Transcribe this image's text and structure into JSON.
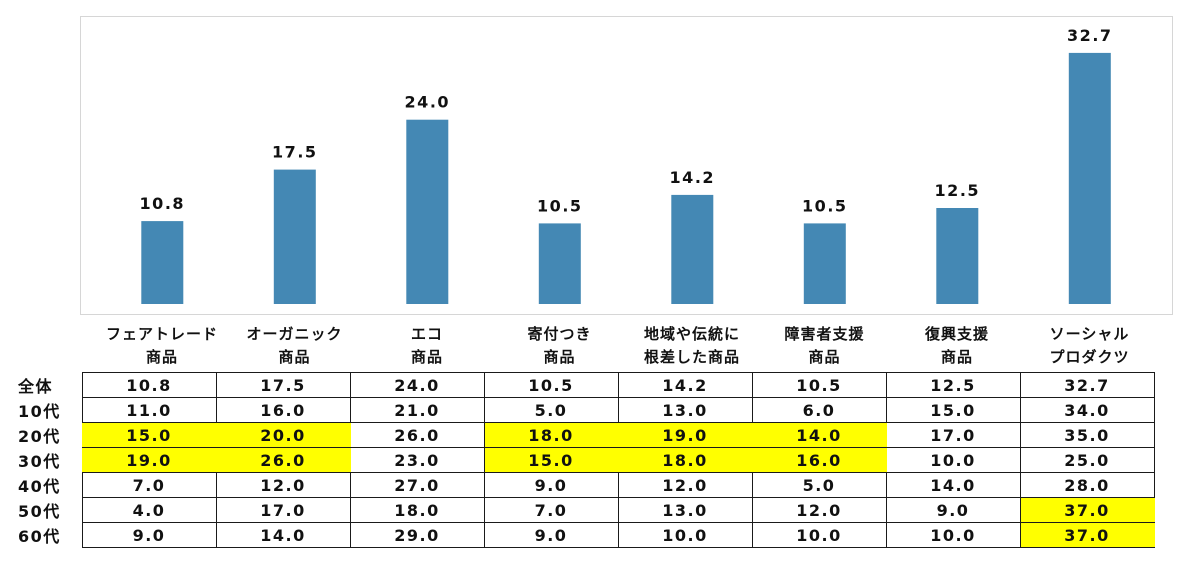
{
  "colors": {
    "bar": "#4488b4",
    "highlight": "#ffff00",
    "frame": "#d6d6d6"
  },
  "chart_data": {
    "type": "bar",
    "categories": [
      [
        "フェアトレード",
        "商品"
      ],
      [
        "オーガニック",
        "商品"
      ],
      [
        "エコ",
        "商品"
      ],
      [
        "寄付つき",
        "商品"
      ],
      [
        "地域や伝統に",
        "根差した商品"
      ],
      [
        "障害者支援",
        "商品"
      ],
      [
        "復興支援",
        "商品"
      ],
      [
        "ソーシャル",
        "プロダクツ"
      ]
    ],
    "values": [
      10.8,
      17.5,
      24.0,
      10.5,
      14.2,
      10.5,
      12.5,
      32.7
    ],
    "value_labels": [
      "10.8",
      "17.5",
      "24.0",
      "10.5",
      "14.2",
      "10.5",
      "12.5",
      "32.7"
    ],
    "ylim": [
      0,
      37.5
    ],
    "grid": false,
    "legend": "none"
  },
  "table": {
    "rows": [
      {
        "label": "全体",
        "values": [
          "10.8",
          "17.5",
          "24.0",
          "10.5",
          "14.2",
          "10.5",
          "12.5",
          "32.7"
        ],
        "highlight": [
          false,
          false,
          false,
          false,
          false,
          false,
          false,
          false
        ]
      },
      {
        "label": "10代",
        "values": [
          "11.0",
          "16.0",
          "21.0",
          "5.0",
          "13.0",
          "6.0",
          "15.0",
          "34.0"
        ],
        "highlight": [
          false,
          false,
          false,
          false,
          false,
          false,
          false,
          false
        ]
      },
      {
        "label": "20代",
        "values": [
          "15.0",
          "20.0",
          "26.0",
          "18.0",
          "19.0",
          "14.0",
          "17.0",
          "35.0"
        ],
        "highlight": [
          true,
          true,
          false,
          true,
          true,
          true,
          false,
          false
        ]
      },
      {
        "label": "30代",
        "values": [
          "19.0",
          "26.0",
          "23.0",
          "15.0",
          "18.0",
          "16.0",
          "10.0",
          "25.0"
        ],
        "highlight": [
          true,
          true,
          false,
          true,
          true,
          true,
          false,
          false
        ]
      },
      {
        "label": "40代",
        "values": [
          "7.0",
          "12.0",
          "27.0",
          "9.0",
          "12.0",
          "5.0",
          "14.0",
          "28.0"
        ],
        "highlight": [
          false,
          false,
          false,
          false,
          false,
          false,
          false,
          false
        ]
      },
      {
        "label": "50代",
        "values": [
          "4.0",
          "17.0",
          "18.0",
          "7.0",
          "13.0",
          "12.0",
          "9.0",
          "37.0"
        ],
        "highlight": [
          false,
          false,
          false,
          false,
          false,
          false,
          false,
          true
        ]
      },
      {
        "label": "60代",
        "values": [
          "9.0",
          "14.0",
          "29.0",
          "9.0",
          "10.0",
          "10.0",
          "10.0",
          "37.0"
        ],
        "highlight": [
          false,
          false,
          false,
          false,
          false,
          false,
          false,
          true
        ]
      }
    ]
  }
}
